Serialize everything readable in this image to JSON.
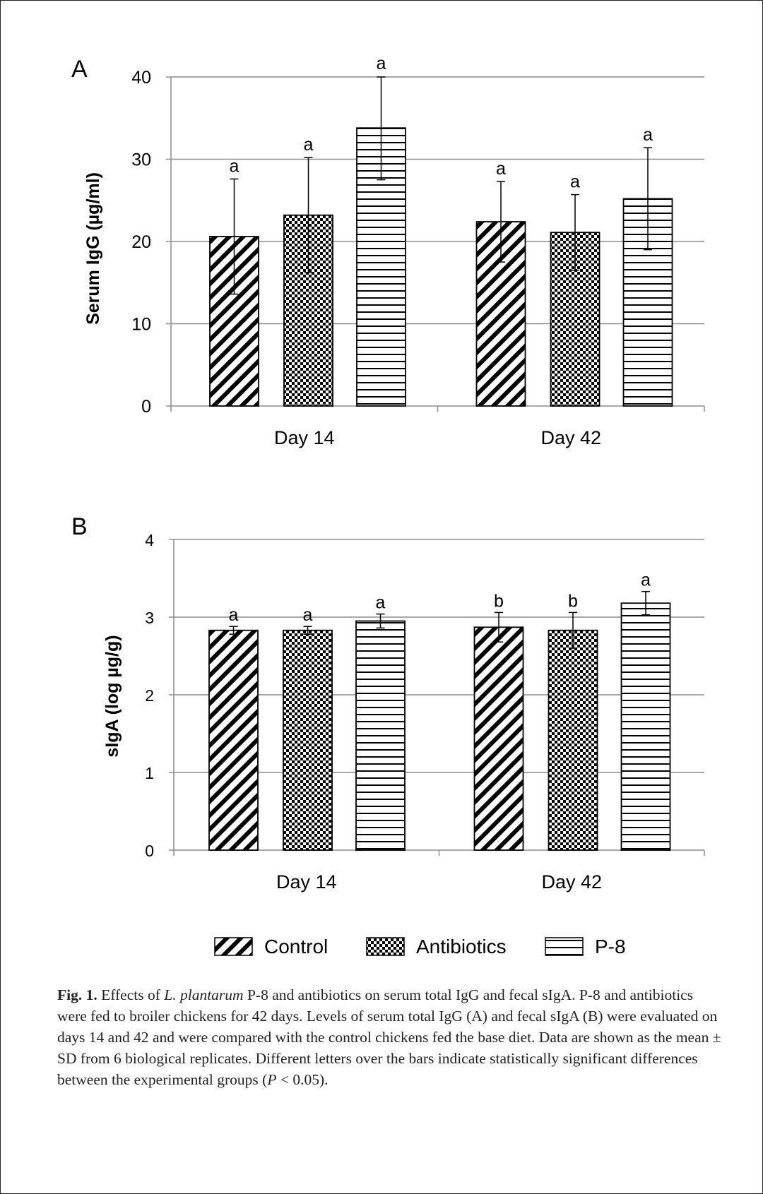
{
  "chart_data": [
    {
      "type": "bar",
      "panel_label": "A",
      "ylabel": "Serum IgG (µg/ml)",
      "xlabel": "",
      "ylim": [
        0,
        40
      ],
      "yticks": [
        "0",
        "10",
        "20",
        "30",
        "40"
      ],
      "categories": [
        "Day 14",
        "Day 42"
      ],
      "grid": true,
      "series": [
        {
          "name": "Control",
          "pattern": "diagonal",
          "values": [
            20.6,
            22.4
          ],
          "errors": [
            7.0,
            4.9
          ],
          "letters": [
            "a",
            "a"
          ]
        },
        {
          "name": "Antibiotics",
          "pattern": "dots",
          "values": [
            23.2,
            21.1
          ],
          "errors": [
            7.0,
            4.6
          ],
          "letters": [
            "a",
            "a"
          ]
        },
        {
          "name": "P-8",
          "pattern": "horizontal",
          "values": [
            33.8,
            25.2
          ],
          "errors": [
            6.3,
            6.2
          ],
          "letters": [
            "a",
            "a"
          ]
        }
      ]
    },
    {
      "type": "bar",
      "panel_label": "B",
      "ylabel": "sIgA (log  µg/g)",
      "xlabel": "",
      "ylim": [
        0,
        4
      ],
      "yticks": [
        "0",
        "1",
        "2",
        "3",
        "4"
      ],
      "categories": [
        "Day 14",
        "Day 42"
      ],
      "grid": true,
      "series": [
        {
          "name": "Control",
          "pattern": "diagonal",
          "values": [
            2.83,
            2.87
          ],
          "errors": [
            0.05,
            0.19
          ],
          "letters": [
            "a",
            "b"
          ]
        },
        {
          "name": "Antibiotics",
          "pattern": "dots",
          "values": [
            2.83,
            2.83
          ],
          "errors": [
            0.05,
            0.23
          ],
          "letters": [
            "a",
            "b"
          ]
        },
        {
          "name": "P-8",
          "pattern": "horizontal",
          "values": [
            2.95,
            3.18
          ],
          "errors": [
            0.09,
            0.15
          ],
          "letters": [
            "a",
            "a"
          ]
        }
      ]
    }
  ],
  "legend": {
    "items": [
      {
        "label": "Control",
        "pattern": "diagonal"
      },
      {
        "label": "Antibiotics",
        "pattern": "dots"
      },
      {
        "label": "P-8",
        "pattern": "horizontal"
      }
    ],
    "placement": "bottom"
  },
  "caption": {
    "fig_label": "Fig. 1.",
    "text_1": " Effects of ",
    "species": "L. plantarum",
    "text_2": " P-8 and antibiotics on serum total IgG and fecal sIgA. P-8 and antibiotics were fed to broiler chickens for 42 days. Levels of serum total IgG (A) and fecal sIgA (B) were evaluated on days 14 and 42 and were compared with the control chickens fed the base diet. Data are shown as the mean ± SD from 6 biological replicates. Different letters over the bars indicate statistically significant differences between the experimental groups (",
    "p_symbol": "P",
    "text_3": " < 0.05)."
  }
}
